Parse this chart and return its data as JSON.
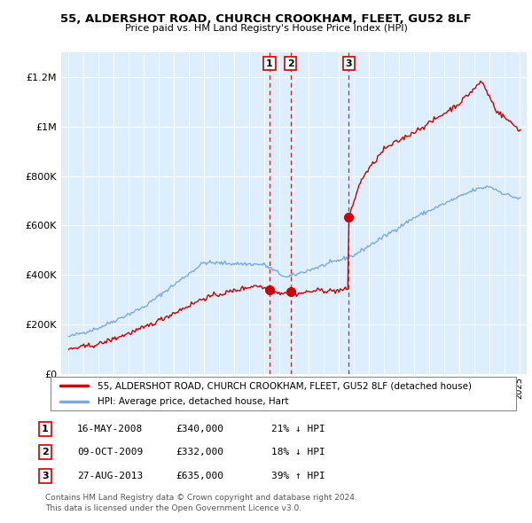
{
  "title1": "55, ALDERSHOT ROAD, CHURCH CROOKHAM, FLEET, GU52 8LF",
  "title2": "Price paid vs. HM Land Registry's House Price Index (HPI)",
  "legend_line1": "55, ALDERSHOT ROAD, CHURCH CROOKHAM, FLEET, GU52 8LF (detached house)",
  "legend_line2": "HPI: Average price, detached house, Hart",
  "footnote1": "Contains HM Land Registry data © Crown copyright and database right 2024.",
  "footnote2": "This data is licensed under the Open Government Licence v3.0.",
  "sales": [
    {
      "num": 1,
      "date": "16-MAY-2008",
      "price": 340000,
      "pct": "21%",
      "dir": "↓",
      "year": 2008.37
    },
    {
      "num": 2,
      "date": "09-OCT-2009",
      "price": 332000,
      "pct": "18%",
      "dir": "↓",
      "year": 2009.77
    },
    {
      "num": 3,
      "date": "27-AUG-2013",
      "price": 635000,
      "pct": "39%",
      "dir": "↑",
      "year": 2013.65
    }
  ],
  "red_color": "#cc0000",
  "blue_color": "#7aaadd",
  "bg_color": "#ddeeff",
  "vline_color": "#cc0000",
  "ylim": [
    0,
    1300000
  ],
  "yticks": [
    0,
    200000,
    400000,
    600000,
    800000,
    1000000,
    1200000
  ],
  "xlim_start": 1994.5,
  "xlim_end": 2025.5,
  "xticks_start": 1995,
  "xticks_end": 2025
}
